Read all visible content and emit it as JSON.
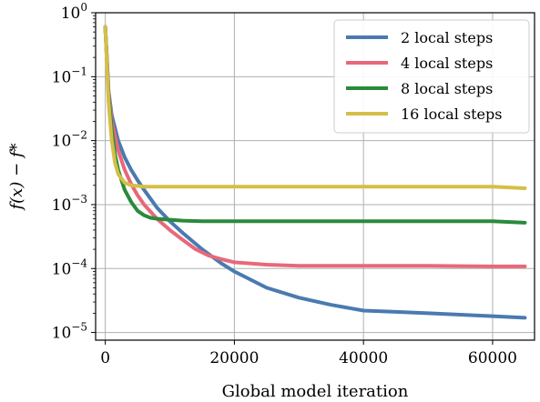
{
  "chart_data": {
    "type": "line",
    "xlabel": "Global model iteration",
    "ylabel": "f(x) − f*",
    "xlim": [
      -1500,
      66500
    ],
    "ylim_log10": [
      -5.12,
      0.0
    ],
    "yscale": "log",
    "grid": true,
    "legend_position": "top-right",
    "x_ticks": [
      0,
      20000,
      40000,
      60000
    ],
    "x_tick_labels": [
      "0",
      "20000",
      "40000",
      "60000"
    ],
    "y_ticks_log10": [
      0,
      -1,
      -2,
      -3,
      -4,
      -5
    ],
    "y_tick_labels": [
      {
        "mantissa": "10",
        "exp": "0"
      },
      {
        "mantissa": "10",
        "exp": "−1"
      },
      {
        "mantissa": "10",
        "exp": "−2"
      },
      {
        "mantissa": "10",
        "exp": "−3"
      },
      {
        "mantissa": "10",
        "exp": "−4"
      },
      {
        "mantissa": "10",
        "exp": "−5"
      }
    ],
    "series": [
      {
        "name": "2 local steps",
        "color": "#4a7ab0",
        "x": [
          0,
          500,
          1000,
          2000,
          3000,
          4000,
          5000,
          6000,
          8000,
          10000,
          12000,
          15000,
          18000,
          20000,
          25000,
          30000,
          35000,
          40000,
          45000,
          50000,
          55000,
          60000,
          65000
        ],
        "y": [
          0.6,
          0.06,
          0.025,
          0.01,
          0.0055,
          0.0035,
          0.0024,
          0.0017,
          0.0009,
          0.00055,
          0.00036,
          0.0002,
          0.00012,
          9e-05,
          5e-05,
          3.5e-05,
          2.7e-05,
          2.2e-05,
          2.1e-05,
          2e-05,
          1.9e-05,
          1.8e-05,
          1.7e-05
        ]
      },
      {
        "name": "4 local steps",
        "color": "#e8687a",
        "x": [
          0,
          500,
          1000,
          2000,
          3000,
          4000,
          5000,
          6000,
          8000,
          10000,
          12000,
          14000,
          16000,
          18000,
          20000,
          25000,
          30000,
          40000,
          50000,
          60000,
          65000
        ],
        "y": [
          0.6,
          0.06,
          0.02,
          0.007,
          0.0035,
          0.0021,
          0.0014,
          0.001,
          0.0006,
          0.0004,
          0.00028,
          0.0002,
          0.00016,
          0.00014,
          0.000125,
          0.000115,
          0.00011,
          0.00011,
          0.00011,
          0.000108,
          0.000108
        ]
      },
      {
        "name": "8 local steps",
        "color": "#2a8a3a",
        "x": [
          0,
          500,
          1000,
          1500,
          2000,
          3000,
          4000,
          5000,
          6000,
          7000,
          8000,
          10000,
          12000,
          15000,
          20000,
          30000,
          40000,
          50000,
          60000,
          65000
        ],
        "y": [
          0.6,
          0.05,
          0.015,
          0.006,
          0.0035,
          0.0017,
          0.0011,
          0.0008,
          0.00068,
          0.00062,
          0.0006,
          0.00058,
          0.00056,
          0.00055,
          0.00055,
          0.00055,
          0.00055,
          0.00055,
          0.00055,
          0.00052
        ]
      },
      {
        "name": "16 local steps",
        "color": "#d4bf48",
        "x": [
          0,
          500,
          1000,
          1500,
          2000,
          3000,
          4000,
          6000,
          8000,
          10000,
          20000,
          30000,
          40000,
          50000,
          60000,
          65000
        ],
        "y": [
          0.6,
          0.04,
          0.01,
          0.0045,
          0.003,
          0.0022,
          0.002,
          0.0019,
          0.0019,
          0.0019,
          0.0019,
          0.0019,
          0.0019,
          0.0019,
          0.0019,
          0.0018
        ]
      }
    ]
  }
}
